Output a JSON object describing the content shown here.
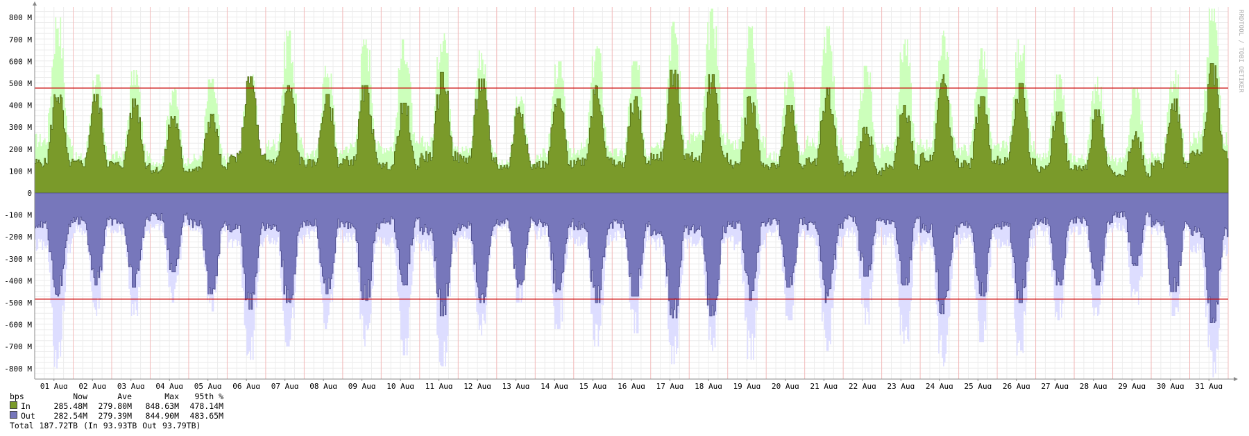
{
  "chart_data": {
    "type": "area",
    "unit": "bps",
    "y_tick_labels": [
      "800 M",
      "700 M",
      "600 M",
      "500 M",
      "400 M",
      "300 M",
      "200 M",
      "100 M",
      "0",
      "-100 M",
      "-200 M",
      "-300 M",
      "-400 M",
      "-500 M",
      "-600 M",
      "-700 M",
      "-800 M"
    ],
    "y_ticks": [
      800,
      700,
      600,
      500,
      400,
      300,
      200,
      100,
      0,
      -100,
      -200,
      -300,
      -400,
      -500,
      -600,
      -700,
      -800
    ],
    "ylim": [
      -848,
      848
    ],
    "x_tick_labels": [
      "01 Aug",
      "02 Aug",
      "03 Aug",
      "04 Aug",
      "05 Aug",
      "06 Aug",
      "07 Aug",
      "08 Aug",
      "09 Aug",
      "10 Aug",
      "11 Aug",
      "12 Aug",
      "13 Aug",
      "14 Aug",
      "15 Aug",
      "16 Aug",
      "17 Aug",
      "18 Aug",
      "19 Aug",
      "20 Aug",
      "21 Aug",
      "22 Aug",
      "23 Aug",
      "24 Aug",
      "25 Aug",
      "26 Aug",
      "27 Aug",
      "28 Aug",
      "29 Aug",
      "30 Aug",
      "31 Aug"
    ],
    "percentile_95": {
      "in": 478.14,
      "out": -483.65,
      "color": "#cc0000"
    },
    "series": [
      {
        "name": "In",
        "color": "#7a9a2a",
        "max_color": "#ccffbb",
        "daily_peak": [
          460,
          450,
          430,
          350,
          360,
          530,
          490,
          450,
          490,
          410,
          550,
          520,
          400,
          430,
          490,
          440,
          560,
          540,
          440,
          400,
          480,
          300,
          400,
          540,
          440,
          500,
          370,
          380,
          280,
          430,
          590
        ],
        "daily_peak_max": [
          800,
          540,
          560,
          480,
          520,
          540,
          740,
          580,
          700,
          700,
          760,
          650,
          440,
          600,
          670,
          600,
          780,
          840,
          760,
          560,
          760,
          580,
          700,
          740,
          660,
          700,
          540,
          530,
          480,
          560,
          840
        ]
      },
      {
        "name": "Out",
        "color": "#7777bb",
        "max_color": "#ddddff",
        "daily_peak": [
          -470,
          -420,
          -430,
          -360,
          -460,
          -530,
          -500,
          -460,
          -490,
          -420,
          -560,
          -500,
          -430,
          -450,
          -500,
          -470,
          -570,
          -560,
          -490,
          -430,
          -500,
          -380,
          -420,
          -550,
          -470,
          -500,
          -420,
          -420,
          -330,
          -450,
          -590
        ],
        "daily_peak_max": [
          -800,
          -560,
          -560,
          -500,
          -540,
          -760,
          -700,
          -620,
          -700,
          -740,
          -790,
          -650,
          -500,
          -620,
          -700,
          -640,
          -780,
          -720,
          -760,
          -580,
          -720,
          -600,
          -700,
          -790,
          -680,
          -740,
          -580,
          -560,
          -520,
          -560,
          -840
        ]
      }
    ]
  },
  "watermark": "RRDTOOL / TOBI OETIKER",
  "legend": {
    "headers": [
      "bps",
      "Now",
      "Ave",
      "Max",
      "95th %"
    ],
    "rows": [
      {
        "label": "In",
        "now": "285.48M",
        "ave": "279.80M",
        "max": "848.63M",
        "p95": "478.14M"
      },
      {
        "label": "Out",
        "now": "282.54M",
        "ave": "279.39M",
        "max": "844.90M",
        "p95": "483.65M"
      }
    ],
    "total": {
      "label": "Total",
      "value": "187.72TB",
      "in_part": "(In",
      "in_value": "93.93TB",
      "out_part": "Out",
      "out_value": "93.79TB)"
    }
  }
}
